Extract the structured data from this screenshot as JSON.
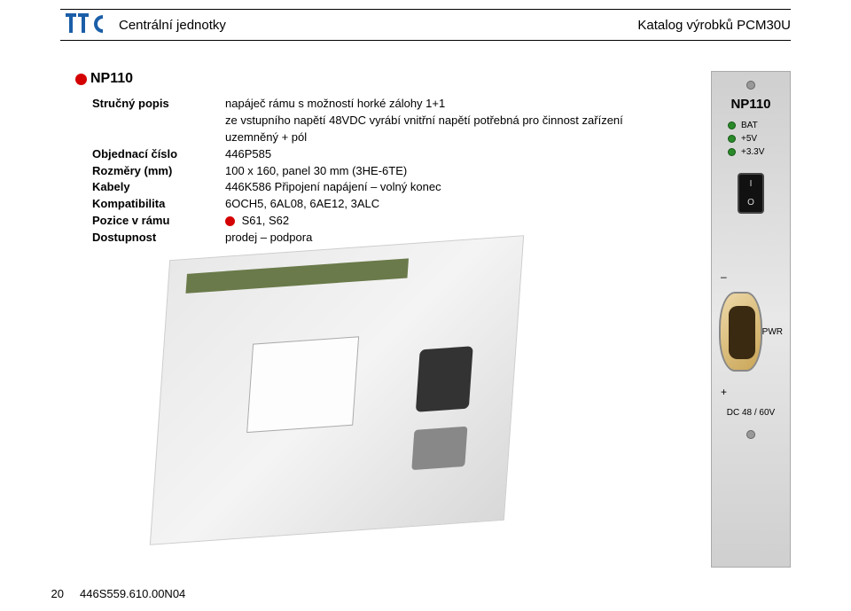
{
  "header": {
    "left": "Centrální jednotky",
    "right": "Katalog výrobků PCM30U"
  },
  "logo": {
    "primary_color": "#1b5ea8",
    "shape": "TTC"
  },
  "title": "NP110",
  "spec": {
    "rows": [
      {
        "label": "Stručný popis",
        "value": "napáječ rámu s možností horké zálohy 1+1\nze vstupního napětí 48VDC vyrábí vnitřní napětí potřebná pro činnost zařízení\nuzemněný + pól"
      },
      {
        "label": "Objednací číslo",
        "value": "446P585"
      },
      {
        "label": "Rozměry (mm)",
        "value": "100 x 160, panel 30 mm (3HE-6TE)"
      },
      {
        "label": "Kabely",
        "value": "446K586   Připojení napájení – volný konec"
      },
      {
        "label": "Kompatibilita",
        "value": "6OCH5, 6AL08, 6AE12, 3ALC"
      },
      {
        "label": "Pozice v rámu",
        "value": "S61, S62",
        "dot": true
      },
      {
        "label": "Dostupnost",
        "value": "prodej – podpora"
      }
    ]
  },
  "panel": {
    "name": "NP110",
    "leds": [
      {
        "label": "BAT"
      },
      {
        "label": "+5V"
      },
      {
        "label": "+3.3V"
      }
    ],
    "rocker": {
      "top": "I",
      "bottom": "O"
    },
    "connector_side": "PWR",
    "signs": {
      "minus": "–",
      "plus": "+"
    },
    "bottom": "DC  48 / 60V"
  },
  "footer": {
    "page": "20",
    "doc": "446S559.610.00N04"
  },
  "colors": {
    "red": "#d40000",
    "led_green": "#2a8a2a",
    "logo_blue": "#1b5ea8"
  }
}
